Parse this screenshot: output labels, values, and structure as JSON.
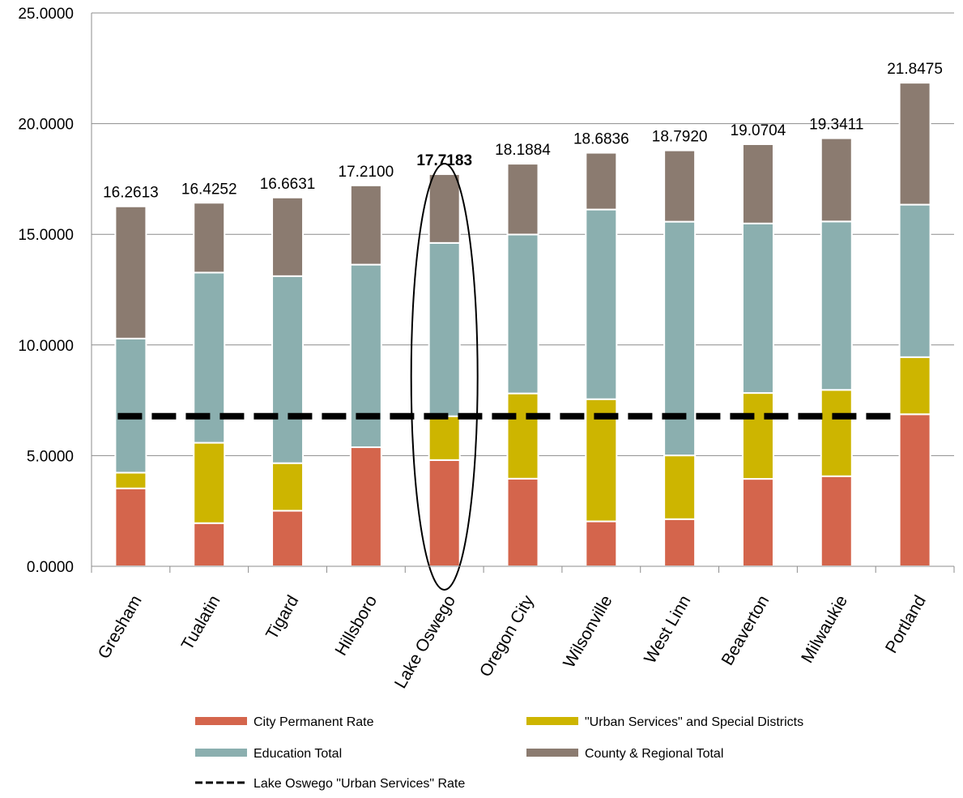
{
  "chart_data": {
    "type": "bar",
    "stacked": true,
    "categories": [
      "Gresham",
      "Tualatin",
      "Tigard",
      "Hillsboro",
      "Lake Oswego",
      "Oregon City",
      "Wilsonville",
      "West Linn",
      "Beaverton",
      "Milwaukie",
      "Portland"
    ],
    "series": [
      {
        "name": "City Permanent Rate",
        "color": "#D4654C",
        "values": [
          3.52,
          1.95,
          2.51,
          5.38,
          4.8,
          3.96,
          2.03,
          2.13,
          3.95,
          4.07,
          6.87
        ]
      },
      {
        "name": "\"Urban Services\" and Special Districts",
        "color": "#CDB500",
        "values": [
          0.71,
          3.63,
          2.15,
          0.0,
          1.98,
          3.85,
          5.52,
          2.88,
          3.88,
          3.9,
          2.58
        ]
      },
      {
        "name": "Education Total",
        "color": "#8BAFAF",
        "values": [
          6.06,
          7.69,
          8.45,
          8.25,
          7.83,
          7.18,
          8.57,
          10.56,
          7.66,
          7.61,
          6.89
        ]
      },
      {
        "name": "County & Regional Total",
        "color": "#8B7B70",
        "values": [
          5.9713,
          3.1552,
          3.5531,
          3.58,
          3.1083,
          3.1984,
          2.5636,
          3.222,
          3.5804,
          3.7611,
          5.5075
        ]
      }
    ],
    "totals": [
      "16.2613",
      "16.4252",
      "16.6631",
      "17.2100",
      "17.7183",
      "18.1884",
      "18.6836",
      "18.7920",
      "19.0704",
      "19.3411",
      "21.8475"
    ],
    "highlight_index": 4,
    "reference_line": {
      "name": "Lake Oswego \"Urban Services\" Rate",
      "value": 6.78,
      "color": "#000000",
      "style": "dashed"
    },
    "ylim": [
      0,
      25
    ],
    "yticks": [
      "0.0000",
      "5.0000",
      "10.0000",
      "15.0000",
      "20.0000",
      "25.0000"
    ],
    "ytick_values": [
      0,
      5,
      10,
      15,
      20,
      25
    ],
    "grid": true,
    "legend_position": "bottom",
    "title": "",
    "xlabel": "",
    "ylabel": ""
  }
}
